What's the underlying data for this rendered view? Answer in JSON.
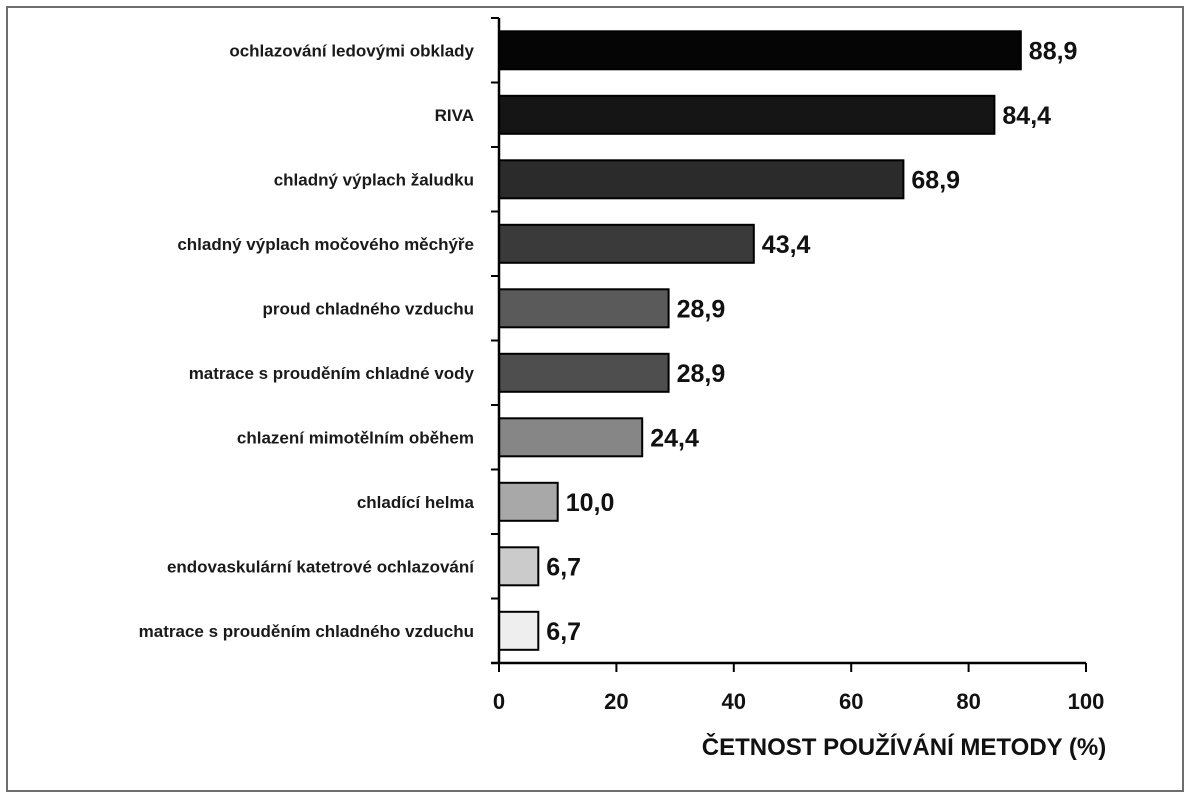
{
  "chart_data": {
    "type": "bar",
    "orientation": "horizontal",
    "categories": [
      "ochlazování ledovými obklady",
      "RIVA",
      "chladný výplach žaludku",
      "chladný výplach močového měchýře",
      "proud chladného vzduchu",
      "matrace s prouděním chladné vody",
      "chlazení mimotělním oběhem",
      "chladící helma",
      "endovaskulární katetrové ochlazování",
      "matrace s prouděním chladného vzduchu"
    ],
    "values": [
      88.9,
      84.4,
      68.9,
      43.4,
      28.9,
      28.9,
      24.4,
      10.0,
      6.7,
      6.7
    ],
    "value_labels": [
      "88,9",
      "84,4",
      "68,9",
      "43,4",
      "28,9",
      "28,9",
      "24,4",
      "10,0",
      "6,7",
      "6,7"
    ],
    "bar_colors": [
      "#050505",
      "#151515",
      "#2b2b2b",
      "#3a3a3a",
      "#5a5a5a",
      "#4e4e4e",
      "#868686",
      "#a8a8a8",
      "#cbcbcb",
      "#eeeeee"
    ],
    "xlabel": "ČETNOST POUŽÍVÁNÍ METODY (%)",
    "ylabel": "",
    "title": "",
    "xlim": [
      0,
      100
    ],
    "xticks": [
      0,
      20,
      40,
      60,
      80,
      100
    ],
    "xtick_labels": [
      "0",
      "20",
      "40",
      "60",
      "80",
      "100"
    ],
    "grid": false,
    "legend": "none"
  }
}
